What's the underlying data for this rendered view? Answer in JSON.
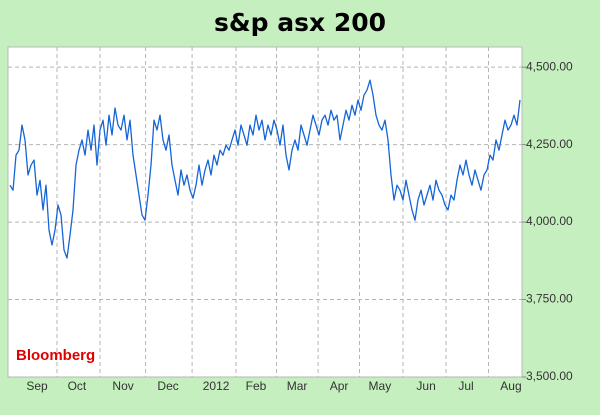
{
  "chart_data": {
    "type": "line",
    "title": "s&p asx 200",
    "annotation": "Bloomberg",
    "series": [
      {
        "color": "#1565d8",
        "values": [
          4119,
          4103,
          4216,
          4232,
          4313,
          4265,
          4152,
          4184,
          4200,
          4087,
          4135,
          4039,
          4119,
          3974,
          3926,
          3974,
          4055,
          4023,
          3910,
          3884,
          3958,
          4039,
          4184,
          4232,
          4265,
          4216,
          4297,
          4232,
          4313,
          4184,
          4297,
          4329,
          4248,
          4345,
          4281,
          4368,
          4313,
          4297,
          4345,
          4265,
          4329,
          4216,
          4152,
          4087,
          4023,
          4006,
          4087,
          4184,
          4329,
          4297,
          4345,
          4265,
          4232,
          4281,
          4184,
          4135,
          4087,
          4168,
          4119,
          4152,
          4103,
          4077,
          4119,
          4184,
          4119,
          4168,
          4200,
          4152,
          4216,
          4184,
          4232,
          4216,
          4248,
          4232,
          4265,
          4297,
          4248,
          4313,
          4281,
          4248,
          4313,
          4281,
          4345,
          4297,
          4329,
          4265,
          4313,
          4281,
          4329,
          4297,
          4248,
          4313,
          4216,
          4168,
          4232,
          4265,
          4232,
          4313,
          4281,
          4248,
          4297,
          4345,
          4313,
          4281,
          4329,
          4345,
          4313,
          4361,
          4329,
          4345,
          4265,
          4313,
          4361,
          4329,
          4377,
          4345,
          4394,
          4361,
          4410,
          4426,
          4458,
          4410,
          4345,
          4313,
          4297,
          4329,
          4265,
          4152,
          4071,
          4119,
          4103,
          4071,
          4135,
          4087,
          4039,
          4006,
          4071,
          4103,
          4055,
          4087,
          4119,
          4071,
          4135,
          4103,
          4087,
          4055,
          4039,
          4087,
          4071,
          4135,
          4184,
          4152,
          4200,
          4152,
          4119,
          4168,
          4135,
          4103,
          4152,
          4168,
          4216,
          4200,
          4265,
          4232,
          4281,
          4329,
          4297,
          4313,
          4345,
          4313,
          4394
        ]
      }
    ],
    "xlim": [
      -0.67,
      170.67
    ],
    "xticks": [
      {
        "value": 9,
        "label": "Sep"
      },
      {
        "value": 22.3,
        "label": "Oct"
      },
      {
        "value": 37.7,
        "label": "Nov"
      },
      {
        "value": 52.7,
        "label": "Dec"
      },
      {
        "value": 68.7,
        "label": "2012"
      },
      {
        "value": 82,
        "label": "Feb"
      },
      {
        "value": 95.7,
        "label": "Mar"
      },
      {
        "value": 109.7,
        "label": "Apr"
      },
      {
        "value": 123.3,
        "label": "May"
      },
      {
        "value": 138.7,
        "label": "Jun"
      },
      {
        "value": 152,
        "label": "Jul"
      },
      {
        "value": 167,
        "label": "Aug"
      }
    ],
    "ylim": [
      3500,
      4565
    ],
    "yticks": [
      {
        "value": 3500,
        "label": "3,500.00"
      },
      {
        "value": 3750,
        "label": "3,750.00"
      },
      {
        "value": 4000,
        "label": "4,000.00"
      },
      {
        "value": 4250,
        "label": "4,250.00"
      },
      {
        "value": 4500,
        "label": "4,500.00"
      }
    ],
    "grid": true
  }
}
